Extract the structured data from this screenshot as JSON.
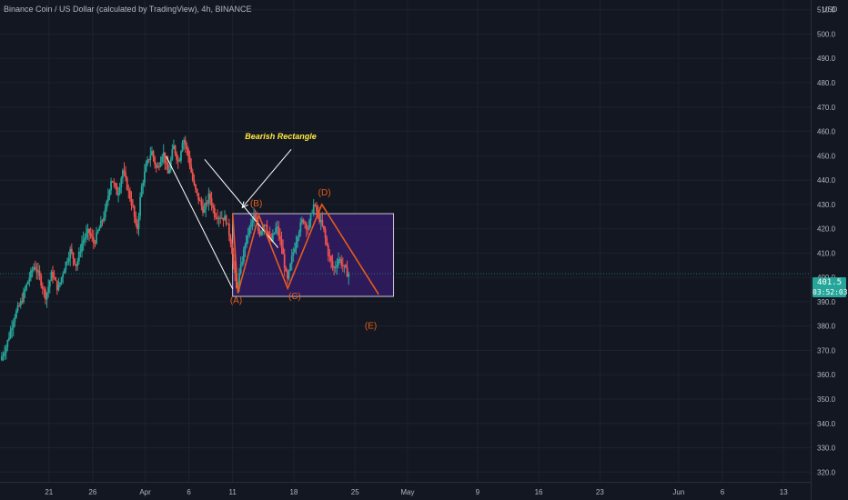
{
  "header": {
    "title": "Binance Coin / US Dollar (calculated by TradingView), 4h, BINANCE"
  },
  "price_axis": {
    "currency": "USD"
  },
  "last_price": {
    "price": "401.5",
    "countdown": "03:52:03",
    "color": "#26a69a"
  },
  "colors": {
    "background": "#131722",
    "grid": "#1e222d",
    "up": "#26a69a",
    "down": "#ef5350",
    "wave": "#e65c19",
    "annotation": "#ffeb3b",
    "rectangle_fill": "#311b64",
    "rectangle_border": "#c9c9d6"
  },
  "chart_data": {
    "type": "candlestick",
    "symbol": "Binance Coin / US Dollar",
    "timeframe": "4h",
    "exchange": "BINANCE",
    "ylim": [
      316,
      514
    ],
    "y_ticks": [
      320,
      330,
      340,
      350,
      360,
      370,
      380,
      390,
      400,
      410,
      420,
      430,
      440,
      450,
      460,
      470,
      480,
      490,
      500,
      510
    ],
    "y_tick_labels": [
      "320.0",
      "330.0",
      "340.0",
      "350.0",
      "360.0",
      "370.0",
      "380.0",
      "390.0",
      "400.0",
      "410.0",
      "420.0",
      "430.0",
      "440.0",
      "450.0",
      "460.0",
      "470.0",
      "480.0",
      "490.0",
      "500.0",
      "510.0"
    ],
    "x_ticks": [
      {
        "label": "21",
        "day": 21
      },
      {
        "label": "26",
        "day": 26
      },
      {
        "label": "Apr",
        "day": 32
      },
      {
        "label": "6",
        "day": 37
      },
      {
        "label": "11",
        "day": 42
      },
      {
        "label": "18",
        "day": 49
      },
      {
        "label": "25",
        "day": 56
      },
      {
        "label": "May",
        "day": 62
      },
      {
        "label": "9",
        "day": 70
      },
      {
        "label": "16",
        "day": 77
      },
      {
        "label": "23",
        "day": 84
      },
      {
        "label": "Jun",
        "day": 93
      },
      {
        "label": "6",
        "day": 98
      },
      {
        "label": "13",
        "day": 105
      }
    ],
    "xlim": [
      15.4,
      108.1
    ],
    "last_price": 401.5,
    "price_path": [
      [
        15.6,
        366
      ],
      [
        16.3,
        372
      ],
      [
        17.2,
        384
      ],
      [
        18.0,
        390
      ],
      [
        18.8,
        399
      ],
      [
        19.5,
        405
      ],
      [
        20.1,
        400
      ],
      [
        20.8,
        392
      ],
      [
        21.5,
        402
      ],
      [
        22.2,
        395
      ],
      [
        22.9,
        404
      ],
      [
        23.6,
        411
      ],
      [
        24.3,
        405
      ],
      [
        25.0,
        415
      ],
      [
        25.7,
        419
      ],
      [
        26.3,
        414
      ],
      [
        27.0,
        421
      ],
      [
        27.6,
        427
      ],
      [
        28.3,
        441
      ],
      [
        29.0,
        434
      ],
      [
        29.6,
        444
      ],
      [
        30.2,
        436
      ],
      [
        30.8,
        428
      ],
      [
        31.2,
        418
      ],
      [
        31.7,
        436
      ],
      [
        32.3,
        446
      ],
      [
        32.9,
        452
      ],
      [
        33.5,
        444
      ],
      [
        34.2,
        452
      ],
      [
        34.8,
        442
      ],
      [
        35.4,
        454
      ],
      [
        36.0,
        447
      ],
      [
        36.5,
        458
      ],
      [
        37.1,
        450
      ],
      [
        37.7,
        438
      ],
      [
        38.3,
        432
      ],
      [
        38.9,
        427
      ],
      [
        39.5,
        434
      ],
      [
        40.1,
        426
      ],
      [
        40.8,
        425
      ],
      [
        41.4,
        424
      ],
      [
        42.0,
        414
      ],
      [
        42.6,
        395
      ],
      [
        43.1,
        404
      ],
      [
        43.6,
        414
      ],
      [
        44.1,
        420
      ],
      [
        44.6,
        425
      ],
      [
        45.2,
        418
      ],
      [
        45.9,
        423
      ],
      [
        46.5,
        414
      ],
      [
        47.2,
        421
      ],
      [
        47.8,
        412
      ],
      [
        48.4,
        398
      ],
      [
        49.0,
        409
      ],
      [
        49.6,
        418
      ],
      [
        50.2,
        424
      ],
      [
        50.8,
        420
      ],
      [
        51.4,
        430
      ],
      [
        52.0,
        425
      ],
      [
        52.6,
        419
      ],
      [
        53.1,
        410
      ],
      [
        53.7,
        403
      ],
      [
        54.3,
        408
      ],
      [
        54.9,
        404
      ],
      [
        55.3,
        401.5
      ]
    ],
    "labels": [
      {
        "text": "(A)",
        "day": 42.4,
        "price": 389.5
      },
      {
        "text": "(B)",
        "day": 44.7,
        "price": 429.2
      },
      {
        "text": "(C)",
        "day": 49.1,
        "price": 391.0
      },
      {
        "text": "(D)",
        "day": 52.5,
        "price": 433.7
      },
      {
        "text": "(E)",
        "day": 57.8,
        "price": 379.0
      }
    ],
    "annotation": {
      "text": "Bearish Rectangle",
      "day": 47.5,
      "price": 456.8
    },
    "rectangle": {
      "day_start": 42.0,
      "day_end": 60.4,
      "price_top": 426.2,
      "price_bottom": 392.2
    },
    "channel": {
      "upper": [
        [
          38.8,
          448.5
        ],
        [
          47.2,
          412.2
        ]
      ],
      "lower": [
        [
          34.4,
          449.8
        ],
        [
          42.0,
          395.3
        ]
      ]
    },
    "wave_path": [
      [
        42.0,
        426.2
      ],
      [
        42.6,
        393.5
      ],
      [
        45.0,
        425.5
      ],
      [
        48.3,
        395.5
      ],
      [
        52.2,
        430.0
      ],
      [
        58.7,
        393.0
      ]
    ],
    "arrow": {
      "from": [
        48.7,
        452.6
      ],
      "to": [
        43.1,
        428.7
      ]
    }
  }
}
